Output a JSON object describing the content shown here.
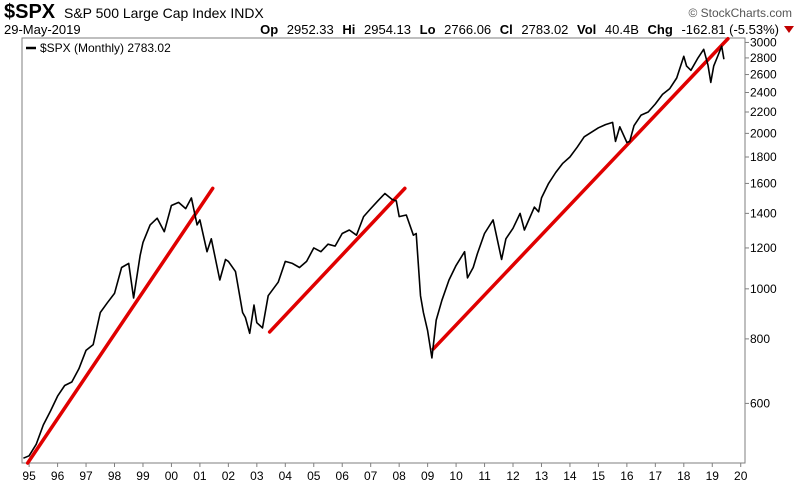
{
  "header": {
    "ticker": "$SPX",
    "name": "S&P 500 Large Cap Index",
    "exchange": "INDX",
    "brand": "© StockCharts.com",
    "date": "29-May-2019",
    "quote": [
      {
        "label": "Op",
        "value": "2952.33"
      },
      {
        "label": "Hi",
        "value": "2954.13"
      },
      {
        "label": "Lo",
        "value": "2766.06"
      },
      {
        "label": "Cl",
        "value": "2783.02"
      },
      {
        "label": "Vol",
        "value": "40.4B"
      },
      {
        "label": "Chg",
        "value": "-162.81 (-5.53%)"
      }
    ],
    "chg_arrow_color": "#c00000"
  },
  "chart_data": {
    "type": "line",
    "legend_text": "$SPX (Monthly) 2783.02",
    "legend_placement": "top-left",
    "y_scale": "log",
    "ylim": [
      460,
      3060
    ],
    "xlim": [
      1994.75,
      2020.15
    ],
    "y_ticks": [
      600,
      800,
      1000,
      1200,
      1400,
      1600,
      1800,
      2000,
      2200,
      2400,
      2600,
      2800,
      3000
    ],
    "x_ticks": [
      "95",
      "96",
      "97",
      "98",
      "99",
      "00",
      "01",
      "02",
      "03",
      "04",
      "05",
      "06",
      "07",
      "08",
      "09",
      "10",
      "11",
      "12",
      "13",
      "14",
      "15",
      "16",
      "17",
      "18",
      "19",
      "20"
    ],
    "series_color": "#000000",
    "trendline_color": "#e00000",
    "series": [
      {
        "values": [
          [
            1994.8,
            470
          ],
          [
            1995.0,
            475
          ],
          [
            1995.25,
            500
          ],
          [
            1995.5,
            545
          ],
          [
            1995.75,
            580
          ],
          [
            1996.0,
            620
          ],
          [
            1996.25,
            650
          ],
          [
            1996.5,
            660
          ],
          [
            1996.75,
            700
          ],
          [
            1997.0,
            760
          ],
          [
            1997.25,
            780
          ],
          [
            1997.5,
            900
          ],
          [
            1997.75,
            940
          ],
          [
            1998.0,
            980
          ],
          [
            1998.25,
            1100
          ],
          [
            1998.5,
            1120
          ],
          [
            1998.67,
            960
          ],
          [
            1998.9,
            1160
          ],
          [
            1999.0,
            1230
          ],
          [
            1999.25,
            1330
          ],
          [
            1999.5,
            1370
          ],
          [
            1999.75,
            1290
          ],
          [
            2000.0,
            1450
          ],
          [
            2000.25,
            1470
          ],
          [
            2000.5,
            1430
          ],
          [
            2000.7,
            1500
          ],
          [
            2000.9,
            1330
          ],
          [
            2001.0,
            1360
          ],
          [
            2001.25,
            1180
          ],
          [
            2001.4,
            1250
          ],
          [
            2001.7,
            1040
          ],
          [
            2001.9,
            1140
          ],
          [
            2002.0,
            1130
          ],
          [
            2002.25,
            1080
          ],
          [
            2002.5,
            900
          ],
          [
            2002.6,
            880
          ],
          [
            2002.75,
            820
          ],
          [
            2002.9,
            930
          ],
          [
            2003.0,
            860
          ],
          [
            2003.2,
            840
          ],
          [
            2003.4,
            970
          ],
          [
            2003.75,
            1030
          ],
          [
            2004.0,
            1130
          ],
          [
            2004.25,
            1120
          ],
          [
            2004.5,
            1100
          ],
          [
            2004.75,
            1130
          ],
          [
            2005.0,
            1200
          ],
          [
            2005.25,
            1180
          ],
          [
            2005.5,
            1220
          ],
          [
            2005.75,
            1210
          ],
          [
            2006.0,
            1280
          ],
          [
            2006.25,
            1300
          ],
          [
            2006.5,
            1270
          ],
          [
            2006.75,
            1380
          ],
          [
            2007.0,
            1430
          ],
          [
            2007.25,
            1480
          ],
          [
            2007.5,
            1530
          ],
          [
            2007.75,
            1490
          ],
          [
            2007.9,
            1480
          ],
          [
            2008.0,
            1380
          ],
          [
            2008.25,
            1390
          ],
          [
            2008.5,
            1270
          ],
          [
            2008.6,
            1280
          ],
          [
            2008.75,
            970
          ],
          [
            2008.85,
            900
          ],
          [
            2009.0,
            830
          ],
          [
            2009.15,
            735
          ],
          [
            2009.3,
            870
          ],
          [
            2009.5,
            950
          ],
          [
            2009.75,
            1040
          ],
          [
            2010.0,
            1110
          ],
          [
            2010.3,
            1180
          ],
          [
            2010.4,
            1050
          ],
          [
            2010.6,
            1100
          ],
          [
            2010.75,
            1170
          ],
          [
            2011.0,
            1280
          ],
          [
            2011.3,
            1360
          ],
          [
            2011.6,
            1140
          ],
          [
            2011.75,
            1250
          ],
          [
            2012.0,
            1310
          ],
          [
            2012.25,
            1400
          ],
          [
            2012.4,
            1300
          ],
          [
            2012.75,
            1440
          ],
          [
            2012.9,
            1410
          ],
          [
            2013.0,
            1500
          ],
          [
            2013.25,
            1600
          ],
          [
            2013.5,
            1680
          ],
          [
            2013.75,
            1750
          ],
          [
            2014.0,
            1800
          ],
          [
            2014.25,
            1880
          ],
          [
            2014.5,
            1970
          ],
          [
            2014.75,
            2010
          ],
          [
            2015.0,
            2050
          ],
          [
            2015.25,
            2080
          ],
          [
            2015.5,
            2100
          ],
          [
            2015.6,
            1930
          ],
          [
            2015.75,
            2060
          ],
          [
            2016.0,
            1920
          ],
          [
            2016.1,
            1930
          ],
          [
            2016.25,
            2070
          ],
          [
            2016.5,
            2170
          ],
          [
            2016.75,
            2200
          ],
          [
            2017.0,
            2280
          ],
          [
            2017.25,
            2380
          ],
          [
            2017.5,
            2440
          ],
          [
            2017.75,
            2560
          ],
          [
            2018.0,
            2820
          ],
          [
            2018.1,
            2700
          ],
          [
            2018.25,
            2650
          ],
          [
            2018.5,
            2800
          ],
          [
            2018.7,
            2910
          ],
          [
            2018.85,
            2710
          ],
          [
            2018.95,
            2510
          ],
          [
            2019.05,
            2700
          ],
          [
            2019.2,
            2830
          ],
          [
            2019.33,
            2950
          ],
          [
            2019.41,
            2783
          ]
        ]
      }
    ],
    "trendlines": [
      {
        "from": [
          1994.95,
          460
        ],
        "to": [
          2001.45,
          1565
        ]
      },
      {
        "from": [
          2003.45,
          825
        ],
        "to": [
          2008.2,
          1565
        ]
      },
      {
        "from": [
          2009.2,
          765
        ],
        "to": [
          2019.55,
          3050
        ]
      }
    ]
  }
}
